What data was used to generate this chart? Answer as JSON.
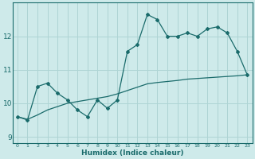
{
  "x": [
    0,
    1,
    2,
    3,
    4,
    5,
    6,
    7,
    8,
    9,
    10,
    11,
    12,
    13,
    14,
    15,
    16,
    17,
    18,
    19,
    20,
    21,
    22,
    23
  ],
  "line1_zigzag": [
    9.6,
    9.5,
    10.5,
    10.6,
    10.3,
    10.1,
    9.8,
    9.6,
    10.1,
    9.85,
    10.1,
    11.55,
    11.75,
    12.65,
    12.5,
    12.0,
    12.0,
    12.1,
    12.0,
    12.22,
    12.28,
    12.1,
    11.55,
    10.85
  ],
  "line2_smooth": [
    9.6,
    9.52,
    9.65,
    9.8,
    9.9,
    10.0,
    10.05,
    10.1,
    10.15,
    10.2,
    10.28,
    10.38,
    10.48,
    10.58,
    10.62,
    10.65,
    10.68,
    10.72,
    10.74,
    10.76,
    10.78,
    10.8,
    10.82,
    10.85
  ],
  "bg_color": "#ceeaea",
  "grid_color": "#aed4d4",
  "line_color": "#1a6b6b",
  "xlabel": "Humidex (Indice chaleur)",
  "xticks": [
    0,
    1,
    2,
    3,
    4,
    5,
    6,
    7,
    8,
    9,
    10,
    11,
    12,
    13,
    14,
    15,
    16,
    17,
    18,
    19,
    20,
    21,
    22,
    23
  ],
  "yticks": [
    9,
    10,
    11,
    12
  ],
  "ylim": [
    8.8,
    13.0
  ],
  "xlim": [
    -0.5,
    23.5
  ],
  "figsize": [
    3.2,
    2.0
  ],
  "dpi": 100
}
